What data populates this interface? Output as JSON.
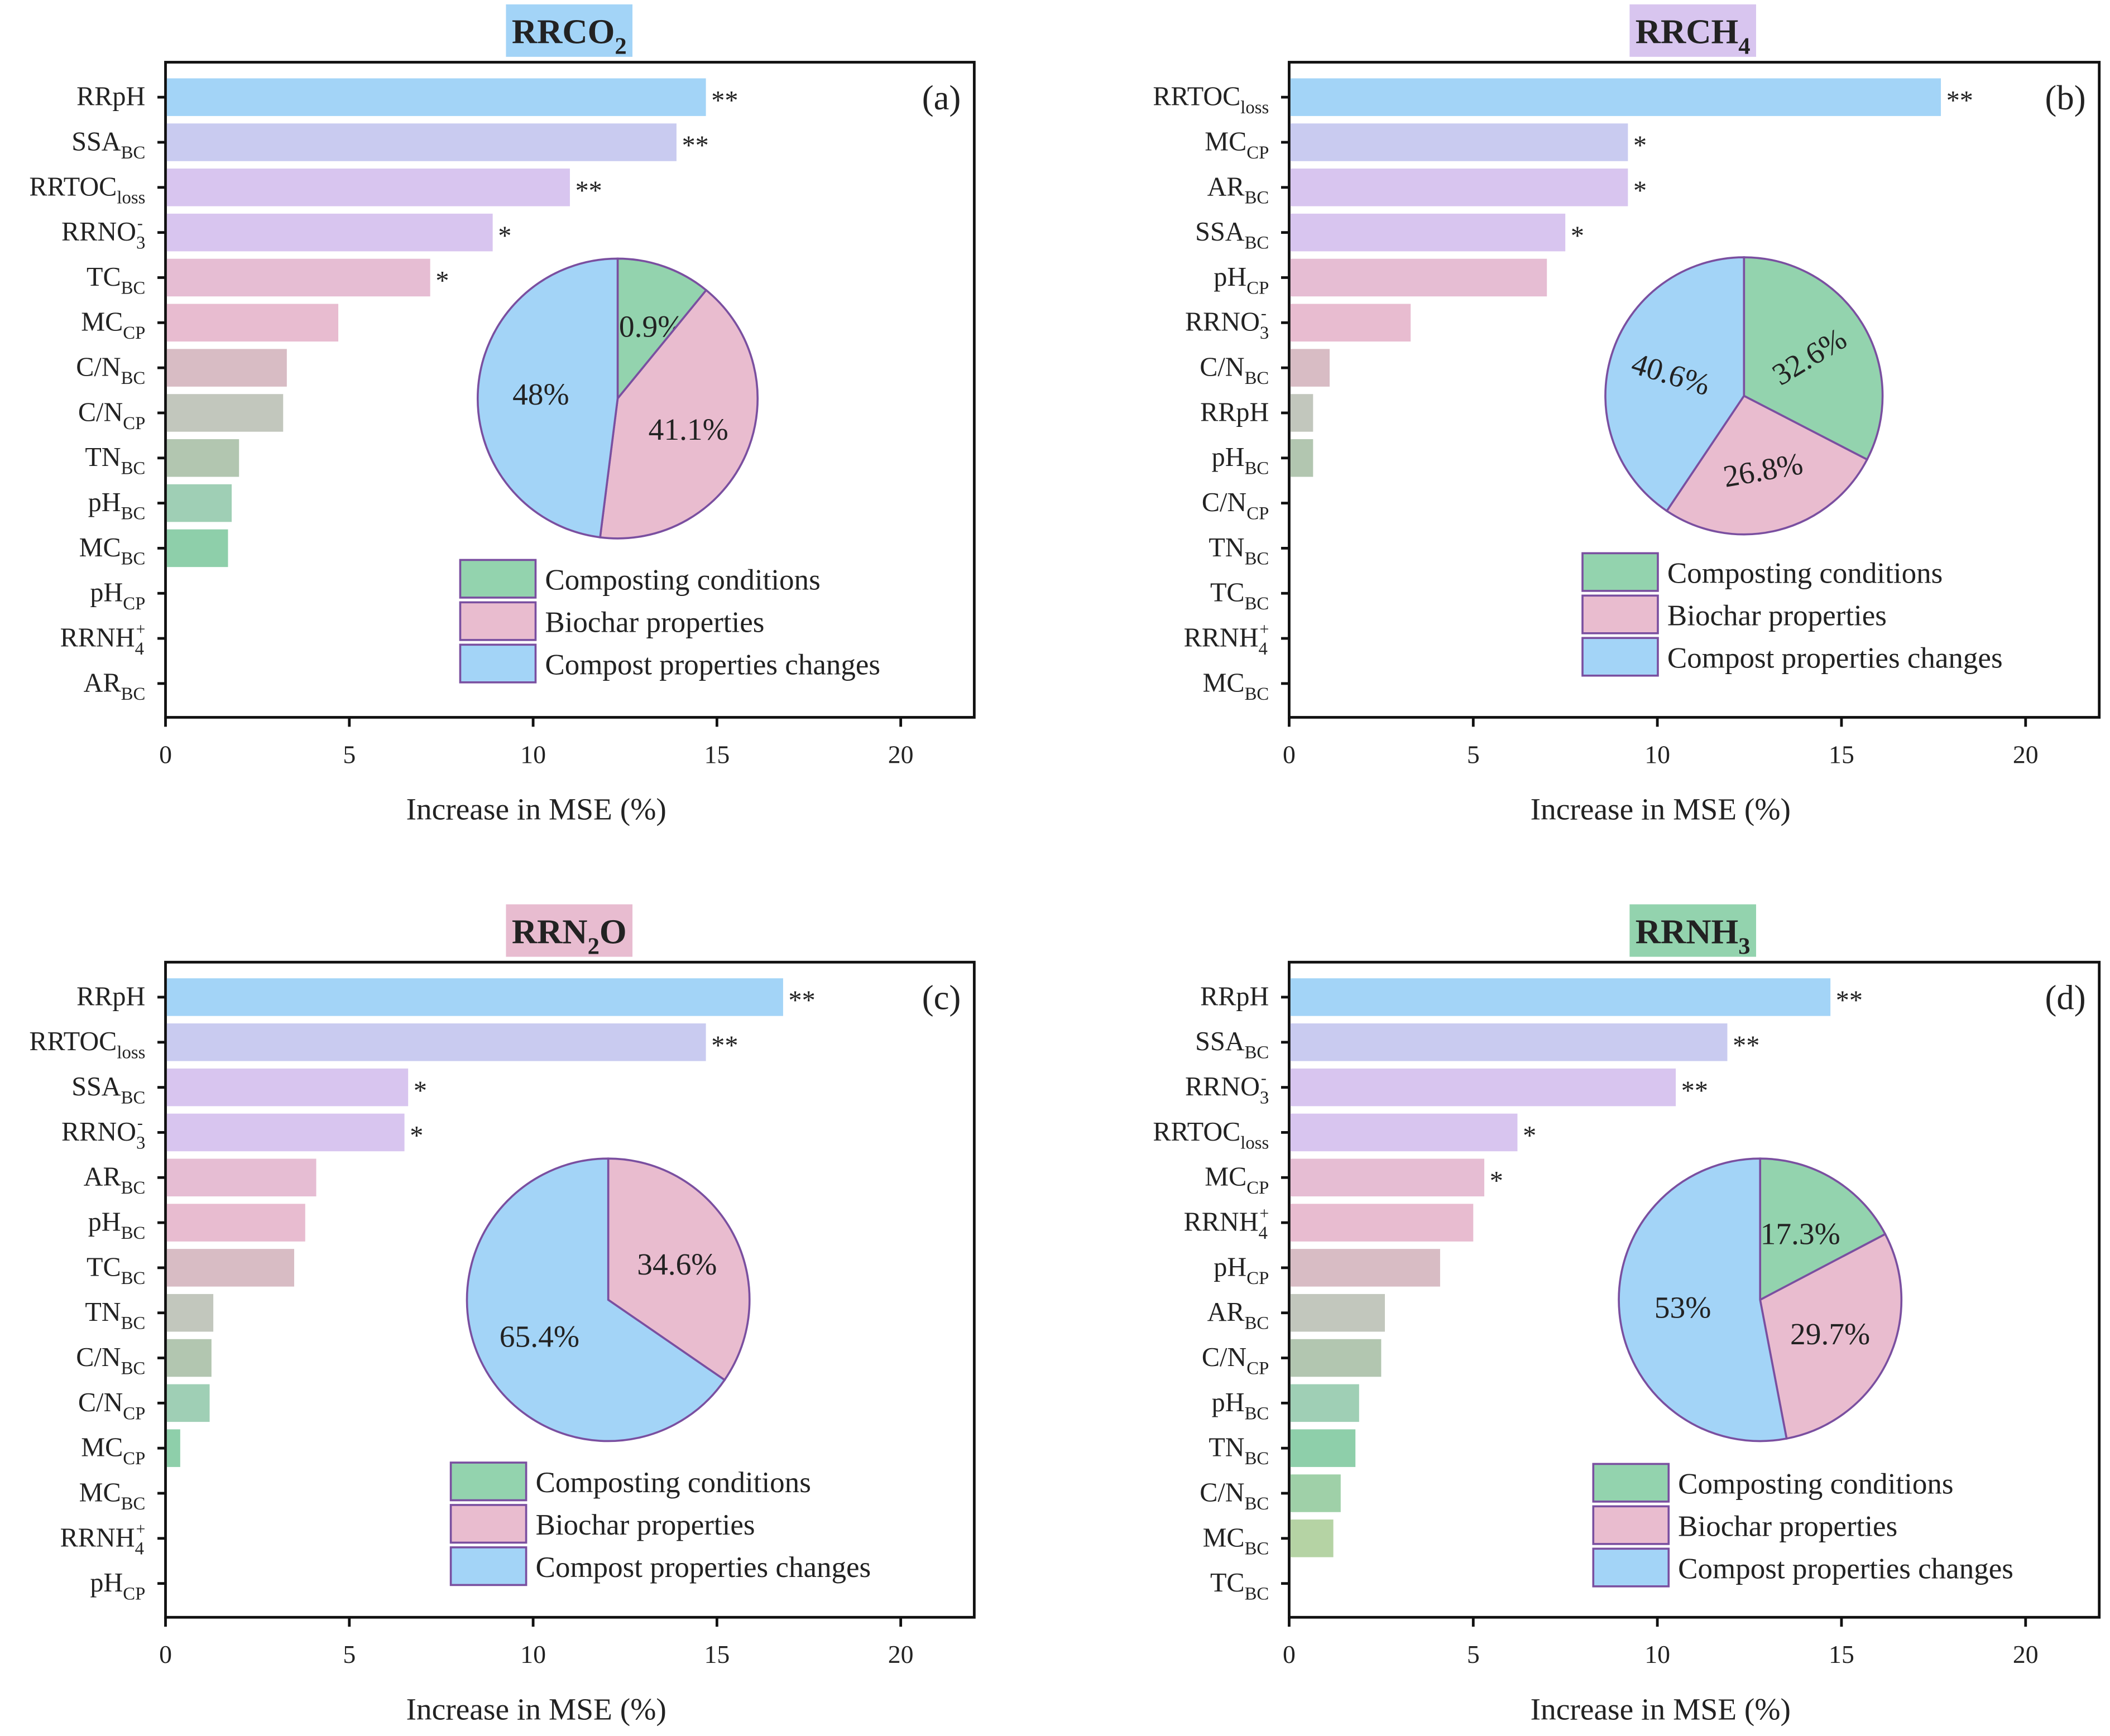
{
  "palette": {
    "bars": [
      "#a3d4f7",
      "#c9cbf0",
      "#d8c5ef",
      "#d8c5ef",
      "#e6bdd3",
      "#e8bcd0",
      "#d8bcc4",
      "#c2c7bd",
      "#b2c6b0",
      "#9fcfb5",
      "#8ecfaa",
      "#9fd0a8",
      "#b5d3a4",
      "#c2d3a0"
    ],
    "pie": [
      "#93d3ae",
      "#e9bccf",
      "#a3d4f7"
    ],
    "pie_edge": "#7a4fa0",
    "axis": "#111111"
  },
  "legend": [
    "Composting conditions",
    "Biochar properties",
    "Compost properties changes"
  ],
  "chart_data": [
    {
      "type": "bar",
      "panel": "(a)",
      "title": {
        "m": "RRCO",
        "s": "2"
      },
      "title_bg": "#a3d4f7",
      "xlabel": "Increase in MSE (%)",
      "xlim": [
        0,
        22
      ],
      "xticks": [
        "0",
        "5",
        "10",
        "15",
        "20"
      ],
      "categories": [
        {
          "m": "RRpH"
        },
        {
          "m": "SSA",
          "s": "BC"
        },
        {
          "m": "RRTOC",
          "s": "loss"
        },
        {
          "m": "RRNO",
          "s": "3",
          "p": "-"
        },
        {
          "m": "TC",
          "s": "BC"
        },
        {
          "m": "MC",
          "s": "CP"
        },
        {
          "m": "C/N",
          "s": "BC"
        },
        {
          "m": "C/N",
          "s": "CP"
        },
        {
          "m": "TN",
          "s": "BC"
        },
        {
          "m": "pH",
          "s": "BC"
        },
        {
          "m": "MC",
          "s": "BC"
        },
        {
          "m": "pH",
          "s": "CP"
        },
        {
          "m": "RRNH",
          "s": "4",
          "p": "+"
        },
        {
          "m": "AR",
          "s": "BC"
        }
      ],
      "values": [
        14.7,
        13.9,
        11.0,
        8.9,
        7.2,
        4.7,
        3.3,
        3.2,
        2.0,
        1.8,
        1.7,
        0,
        0,
        0
      ],
      "significance": [
        "**",
        "**",
        "**",
        "*",
        "*",
        "",
        "",
        "",
        "",
        "",
        "",
        "",
        "",
        ""
      ],
      "pie": {
        "type": "pie",
        "labels": [
          "10.9%",
          "41.1%",
          "48%"
        ],
        "values": [
          10.9,
          41.1,
          48.0
        ]
      }
    },
    {
      "type": "bar",
      "panel": "(b)",
      "title": {
        "m": "RRCH",
        "s": "4"
      },
      "title_bg": "#d8c5ef",
      "xlabel": "Increase in MSE (%)",
      "xlim": [
        0,
        22
      ],
      "xticks": [
        "0",
        "5",
        "10",
        "15",
        "20"
      ],
      "categories": [
        {
          "m": "RRTOC",
          "s": "loss"
        },
        {
          "m": "MC",
          "s": "CP"
        },
        {
          "m": "AR",
          "s": "BC"
        },
        {
          "m": "SSA",
          "s": "BC"
        },
        {
          "m": "pH",
          "s": "CP"
        },
        {
          "m": "RRNO",
          "s": "3",
          "p": "-"
        },
        {
          "m": "C/N",
          "s": "BC"
        },
        {
          "m": "RRpH"
        },
        {
          "m": "pH",
          "s": "BC"
        },
        {
          "m": "C/N",
          "s": "CP"
        },
        {
          "m": "TN",
          "s": "BC"
        },
        {
          "m": "TC",
          "s": "BC"
        },
        {
          "m": "RRNH",
          "s": "4",
          "p": "+"
        },
        {
          "m": "MC",
          "s": "BC"
        }
      ],
      "values": [
        17.7,
        9.2,
        9.2,
        7.5,
        7.0,
        3.3,
        1.1,
        0.65,
        0.65,
        0,
        0,
        0,
        0,
        0
      ],
      "significance": [
        "**",
        "*",
        "*",
        "*",
        "",
        "",
        "",
        "",
        "",
        "",
        "",
        "",
        "",
        ""
      ],
      "pie": {
        "type": "pie",
        "labels": [
          "32.6%",
          "26.8%",
          "40.6%"
        ],
        "values": [
          32.6,
          26.8,
          40.6
        ]
      }
    },
    {
      "type": "bar",
      "panel": "(c)",
      "title": {
        "m": "RRN",
        "s": "2",
        "m2": "O"
      },
      "title_bg": "#e8bcd0",
      "xlabel": "Increase in MSE (%)",
      "xlim": [
        0,
        22
      ],
      "xticks": [
        "0",
        "5",
        "10",
        "15",
        "20"
      ],
      "categories": [
        {
          "m": "RRpH"
        },
        {
          "m": "RRTOC",
          "s": "loss"
        },
        {
          "m": "SSA",
          "s": "BC"
        },
        {
          "m": "RRNO",
          "s": "3",
          "p": "-"
        },
        {
          "m": "AR",
          "s": "BC"
        },
        {
          "m": "pH",
          "s": "BC"
        },
        {
          "m": "TC",
          "s": "BC"
        },
        {
          "m": "TN",
          "s": "BC"
        },
        {
          "m": "C/N",
          "s": "BC"
        },
        {
          "m": "C/N",
          "s": "CP"
        },
        {
          "m": "MC",
          "s": "CP"
        },
        {
          "m": "MC",
          "s": "BC"
        },
        {
          "m": "RRNH",
          "s": "4",
          "p": "+"
        },
        {
          "m": "pH",
          "s": "CP"
        }
      ],
      "values": [
        16.8,
        14.7,
        6.6,
        6.5,
        4.1,
        3.8,
        3.5,
        1.3,
        1.25,
        1.2,
        0.4,
        0,
        0,
        0
      ],
      "significance": [
        "**",
        "**",
        "*",
        "*",
        "",
        "",
        "",
        "",
        "",
        "",
        "",
        "",
        "",
        ""
      ],
      "pie": {
        "type": "pie",
        "labels": [
          "",
          "34.6%",
          "65.4%"
        ],
        "values": [
          0,
          34.6,
          65.4
        ]
      }
    },
    {
      "type": "bar",
      "panel": "(d)",
      "title": {
        "m": "RRNH",
        "s": "3"
      },
      "title_bg": "#93d3ae",
      "xlabel": "Increase in MSE (%)",
      "xlim": [
        0,
        22
      ],
      "xticks": [
        "0",
        "5",
        "10",
        "15",
        "20"
      ],
      "categories": [
        {
          "m": "RRpH"
        },
        {
          "m": "SSA",
          "s": "BC"
        },
        {
          "m": "RRNO",
          "s": "3",
          "p": "-"
        },
        {
          "m": "RRTOC",
          "s": "loss"
        },
        {
          "m": "MC",
          "s": "CP"
        },
        {
          "m": "RRNH",
          "s": "4",
          "p": "+"
        },
        {
          "m": "pH",
          "s": "CP"
        },
        {
          "m": "AR",
          "s": "BC"
        },
        {
          "m": "C/N",
          "s": "CP"
        },
        {
          "m": "pH",
          "s": "BC"
        },
        {
          "m": "TN",
          "s": "BC"
        },
        {
          "m": "C/N",
          "s": "BC"
        },
        {
          "m": "MC",
          "s": "BC"
        },
        {
          "m": "TC",
          "s": "BC"
        }
      ],
      "values": [
        14.7,
        11.9,
        10.5,
        6.2,
        5.3,
        5.0,
        4.1,
        2.6,
        2.5,
        1.9,
        1.8,
        1.4,
        1.2,
        0
      ],
      "significance": [
        "**",
        "**",
        "**",
        "*",
        "*",
        "",
        "",
        "",
        "",
        "",
        "",
        "",
        "",
        ""
      ],
      "pie": {
        "type": "pie",
        "labels": [
          "17.3%",
          "29.7%",
          "53%"
        ],
        "values": [
          17.3,
          29.7,
          53.0
        ]
      }
    }
  ]
}
